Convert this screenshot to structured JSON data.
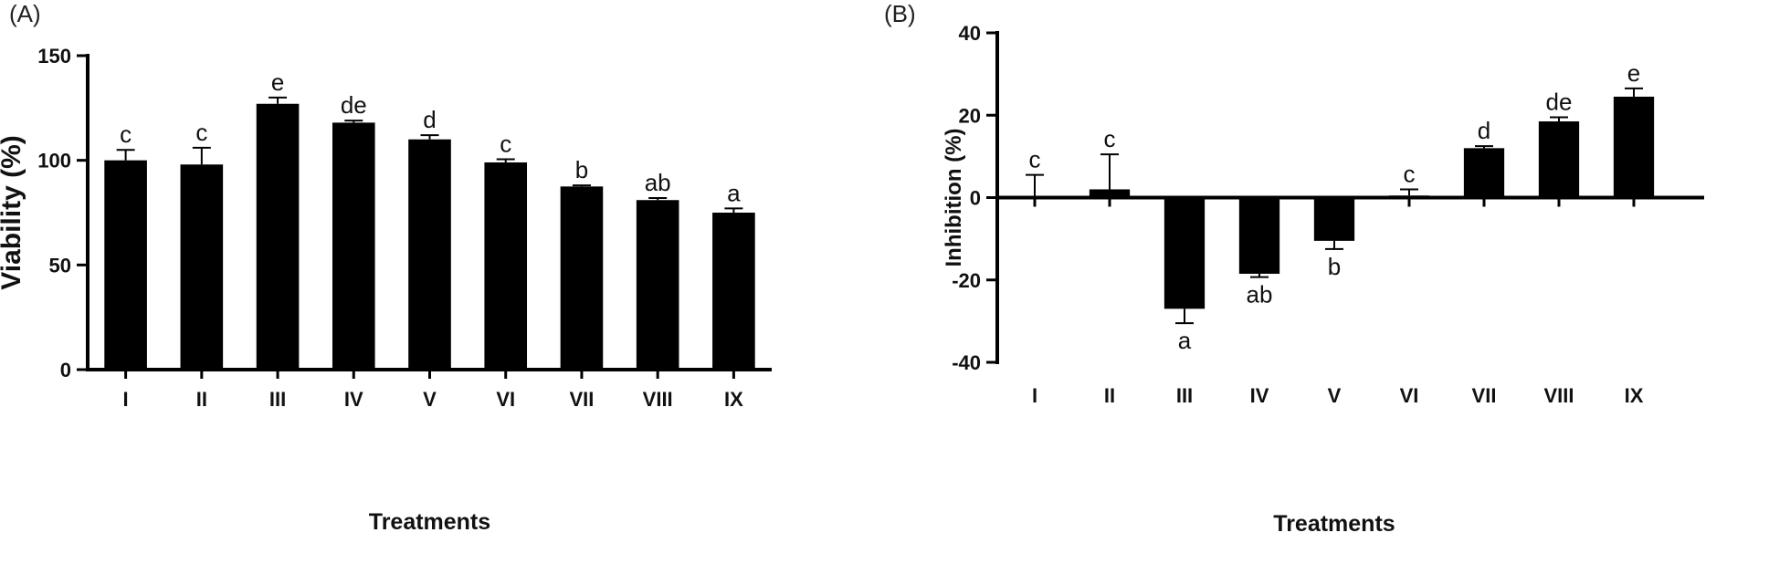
{
  "chart_data": [
    {
      "panel": "(A)",
      "type": "bar",
      "title": "",
      "xlabel": "Treatments",
      "ylabel": "Viability (%)",
      "ylim": [
        0,
        150
      ],
      "yticks": [
        0,
        50,
        100,
        150
      ],
      "categories": [
        "I",
        "II",
        "III",
        "IV",
        "V",
        "VI",
        "VII",
        "VIII",
        "IX"
      ],
      "values": [
        100,
        98,
        127,
        118,
        110,
        99,
        87.5,
        81,
        75
      ],
      "errors": [
        5,
        8,
        3,
        1,
        2,
        1.5,
        0.5,
        1,
        2
      ],
      "letters": [
        "c",
        "c",
        "e",
        "de",
        "d",
        "c",
        "b",
        "ab",
        "a"
      ],
      "bar_color": "#000000",
      "grid": false,
      "legend": "none"
    },
    {
      "panel": "(B)",
      "type": "bar",
      "title": "",
      "xlabel": "Treatments",
      "ylabel": "Inhibition (%)",
      "ylim": [
        -40,
        40
      ],
      "yticks": [
        40,
        20,
        0,
        -20,
        -40
      ],
      "categories": [
        "I",
        "II",
        "III",
        "IV",
        "V",
        "VI",
        "VII",
        "VIII",
        "IX"
      ],
      "values": [
        0,
        2,
        -27,
        -18.5,
        -10.5,
        0.5,
        12,
        18.5,
        24.5
      ],
      "errors": [
        5.5,
        8.5,
        3.5,
        0.8,
        2,
        1.5,
        0.5,
        1,
        2
      ],
      "letters": [
        "c",
        "c",
        "a",
        "ab",
        "b",
        "c",
        "d",
        "de",
        "e"
      ],
      "bar_color": "#000000",
      "grid": false,
      "legend": "none"
    }
  ]
}
